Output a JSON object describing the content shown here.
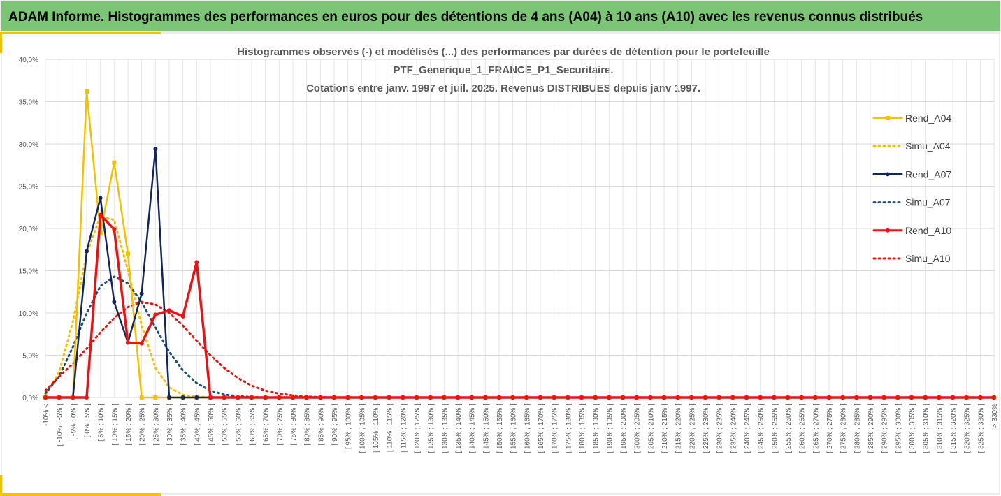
{
  "header": {
    "title": "ADAM Informe. Histogrammes des performances en euros pour des détentions de 4 ans (A04) à 10 ans (A10) avec les revenus connus distribués"
  },
  "chart_data": {
    "type": "line",
    "subtitle": [
      "Histogrammes observés (-) et modélisés (...) des performances par durées de détention pour le portefeuille",
      "PTF_Generique_1_FRANCE_P1_Securitaire.",
      "Cotations entre janv. 1997 et juil. 2025. Revenus DISTRIBUES depuis janv 1997."
    ],
    "categories": [
      "-10% <",
      "[ -10% ; -5% [",
      "[ -5% ; 0% [",
      "[ 0% ; 5% [",
      "[ 5% ; 10% [",
      "[ 10% ; 15% [",
      "[ 15% ; 20% [",
      "[ 20% ; 25% [",
      "[ 25% ; 30% [",
      "[ 30% ; 35% [",
      "[ 35% ; 40% [",
      "[ 40% ; 45% [",
      "[ 45% ; 50% [",
      "[ 50% ; 55% [",
      "[ 55% ; 60% [",
      "[ 60% ; 65% [",
      "[ 65% ; 70% [",
      "[ 70% ; 75% [",
      "[ 75% ; 80% [",
      "[ 80% ; 85% [",
      "[ 85% ; 90% [",
      "[ 90% ; 95% [",
      "[ 95% ; 100% [",
      "[ 100% ; 105% [",
      "[ 105% ; 110% [",
      "[ 110% ; 115% [",
      "[ 115% ; 120% [",
      "[ 120% ; 125% [",
      "[ 125% ; 130% [",
      "[ 130% ; 135% [",
      "[ 135% ; 140% [",
      "[ 140% ; 145% [",
      "[ 145% ; 150% [",
      "[ 150% ; 155% [",
      "[ 155% ; 160% [",
      "[ 160% ; 165% [",
      "[ 165% ; 170% [",
      "[ 170% ; 175% [",
      "[ 175% ; 180% [",
      "[ 180% ; 185% [",
      "[ 185% ; 190% [",
      "[ 190% ; 195% [",
      "[ 195% ; 200% [",
      "[ 200% ; 205% [",
      "[ 205% ; 210% [",
      "[ 210% ; 215% [",
      "[ 215% ; 220% [",
      "[ 220% ; 225% [",
      "[ 225% ; 230% [",
      "[ 230% ; 235% [",
      "[ 235% ; 240% [",
      "[ 240% ; 245% [",
      "[ 245% ; 250% [",
      "[ 250% ; 255% [",
      "[ 255% ; 260% [",
      "[ 260% ; 265% [",
      "[ 265% ; 270% [",
      "[ 270% ; 275% [",
      "[ 275% ; 280% [",
      "[ 280% ; 285% [",
      "[ 285% ; 290% [",
      "[ 290% ; 295% [",
      "[ 295% ; 300% [",
      "[ 300% ; 305% [",
      "[ 305% ; 310% [",
      "[ 310% ; 315% [",
      "[ 315% ; 320% [",
      "[ 320% ; 325% [",
      "[ 325% ; 330% [",
      "> 330%"
    ],
    "series": [
      {
        "name": "Rend_A04",
        "color": "#f5c000",
        "dash": false,
        "marker": "square",
        "values": [
          0,
          0,
          0,
          36.2,
          19.5,
          27.8,
          17,
          0,
          0,
          0,
          0,
          0,
          0,
          0,
          0,
          0,
          0,
          0,
          0,
          0,
          0,
          0,
          0,
          0,
          0,
          0,
          0,
          0,
          0,
          0,
          0,
          0,
          0,
          0,
          0,
          0,
          0,
          0,
          0,
          0,
          0,
          0,
          0,
          0,
          0,
          0,
          0,
          0,
          0,
          0,
          0,
          0,
          0,
          0,
          0,
          0,
          0,
          0,
          0,
          0,
          0,
          0,
          0,
          0,
          0,
          0,
          0,
          0,
          0,
          0
        ]
      },
      {
        "name": "Simu_A04",
        "color": "#f5c000",
        "dash": true,
        "marker": null,
        "values": [
          0.3,
          3,
          9,
          17,
          21.5,
          21,
          15,
          8.5,
          3.5,
          1.2,
          0.3,
          0.1,
          0,
          0,
          0,
          0,
          0,
          0,
          0,
          0,
          0,
          0,
          0,
          0,
          0,
          0,
          0,
          0,
          0,
          0,
          0,
          0,
          0,
          0,
          0,
          0,
          0,
          0,
          0,
          0,
          0,
          0,
          0,
          0,
          0,
          0,
          0,
          0,
          0,
          0,
          0,
          0,
          0,
          0,
          0,
          0,
          0,
          0,
          0,
          0,
          0,
          0,
          0,
          0,
          0,
          0,
          0,
          0,
          0,
          0
        ]
      },
      {
        "name": "Rend_A07",
        "color": "#12265e",
        "dash": false,
        "marker": "circle",
        "values": [
          0,
          0,
          0,
          17.3,
          23.6,
          11.3,
          6.5,
          12.3,
          29.4,
          0,
          0,
          0,
          0,
          0,
          0,
          0,
          0,
          0,
          0,
          0,
          0,
          0,
          0,
          0,
          0,
          0,
          0,
          0,
          0,
          0,
          0,
          0,
          0,
          0,
          0,
          0,
          0,
          0,
          0,
          0,
          0,
          0,
          0,
          0,
          0,
          0,
          0,
          0,
          0,
          0,
          0,
          0,
          0,
          0,
          0,
          0,
          0,
          0,
          0,
          0,
          0,
          0,
          0,
          0,
          0,
          0,
          0,
          0,
          0,
          0
        ]
      },
      {
        "name": "Simu_A07",
        "color": "#1f4e79",
        "dash": true,
        "marker": null,
        "values": [
          0.5,
          2.5,
          6,
          10,
          13.2,
          14.3,
          13.5,
          11.3,
          8.3,
          5.4,
          3.2,
          1.7,
          0.8,
          0.35,
          0.15,
          0.05,
          0,
          0,
          0,
          0,
          0,
          0,
          0,
          0,
          0,
          0,
          0,
          0,
          0,
          0,
          0,
          0,
          0,
          0,
          0,
          0,
          0,
          0,
          0,
          0,
          0,
          0,
          0,
          0,
          0,
          0,
          0,
          0,
          0,
          0,
          0,
          0,
          0,
          0,
          0,
          0,
          0,
          0,
          0,
          0,
          0,
          0,
          0,
          0,
          0,
          0,
          0,
          0,
          0,
          0
        ]
      },
      {
        "name": "Rend_A10",
        "color": "#ee1111",
        "dash": false,
        "marker": "circle",
        "values": [
          0,
          0,
          0,
          0,
          21.6,
          19.9,
          6.5,
          6.4,
          9.8,
          10.3,
          9.6,
          16.0,
          0,
          0,
          0,
          0,
          0,
          0,
          0,
          0,
          0,
          0,
          0,
          0,
          0,
          0,
          0,
          0,
          0,
          0,
          0,
          0,
          0,
          0,
          0,
          0,
          0,
          0,
          0,
          0,
          0,
          0,
          0,
          0,
          0,
          0,
          0,
          0,
          0,
          0,
          0,
          0,
          0,
          0,
          0,
          0,
          0,
          0,
          0,
          0,
          0,
          0,
          0,
          0,
          0,
          0,
          0,
          0,
          0,
          0
        ]
      },
      {
        "name": "Simu_A10",
        "color": "#ee1111",
        "dash": true,
        "marker": null,
        "values": [
          0.8,
          2.5,
          4,
          5.8,
          7.7,
          9.4,
          10.7,
          11.3,
          11,
          10,
          8.5,
          6.7,
          5,
          3.5,
          2.3,
          1.4,
          0.8,
          0.45,
          0.25,
          0.1,
          0.05,
          0,
          0,
          0,
          0,
          0,
          0,
          0,
          0,
          0,
          0,
          0,
          0,
          0,
          0,
          0,
          0,
          0,
          0,
          0,
          0,
          0,
          0,
          0,
          0,
          0,
          0,
          0,
          0,
          0,
          0,
          0,
          0,
          0,
          0,
          0,
          0,
          0,
          0,
          0,
          0,
          0,
          0,
          0,
          0,
          0,
          0,
          0,
          0,
          0
        ]
      }
    ],
    "ylim": [
      0,
      40
    ],
    "yticks": [
      {
        "value": 0,
        "label": "0,0%"
      },
      {
        "value": 5,
        "label": "5,0%"
      },
      {
        "value": 10,
        "label": "10,0%"
      },
      {
        "value": 15,
        "label": "15,0%"
      },
      {
        "value": 20,
        "label": "20,0%"
      },
      {
        "value": 25,
        "label": "25,0%"
      },
      {
        "value": 30,
        "label": "30,0%"
      },
      {
        "value": 35,
        "label": "35,0%"
      },
      {
        "value": 40,
        "label": "40,0%"
      }
    ],
    "grid": true,
    "legend": "right"
  }
}
